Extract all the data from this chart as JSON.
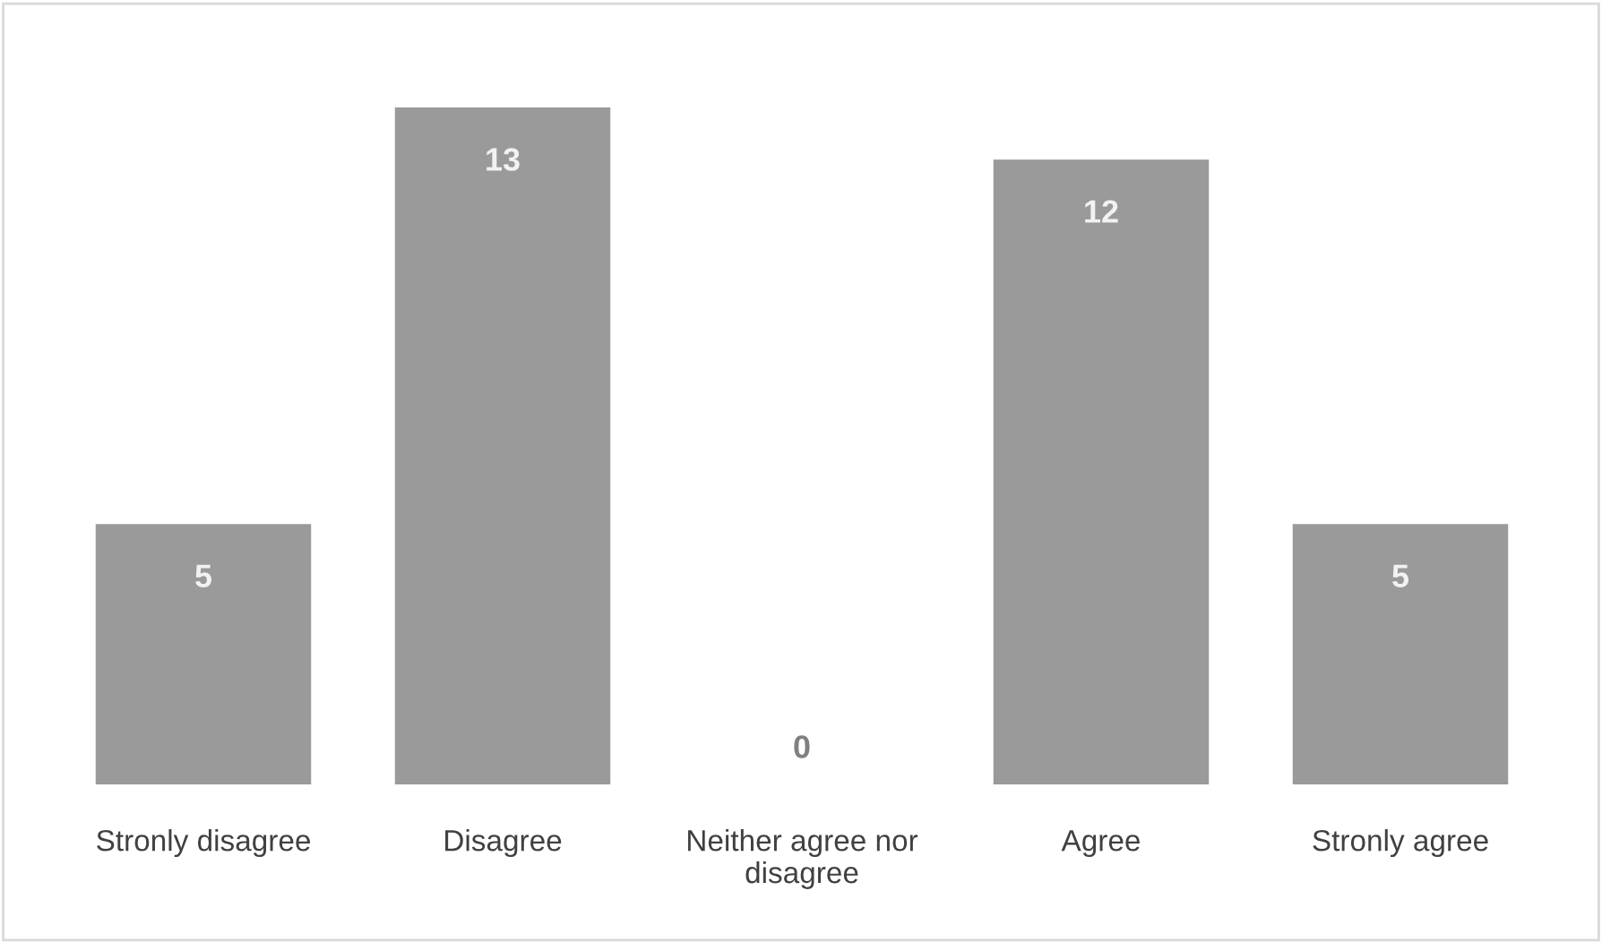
{
  "chart_data": {
    "type": "bar",
    "categories": [
      "Stronly disagree",
      "Disagree",
      "Neither agree nor\ndisagree",
      "Agree",
      "Stronly agree"
    ],
    "values": [
      5,
      13,
      0,
      12,
      5
    ],
    "color": "#9a9a9a",
    "data_labels": true,
    "grid": false,
    "legend": false
  }
}
